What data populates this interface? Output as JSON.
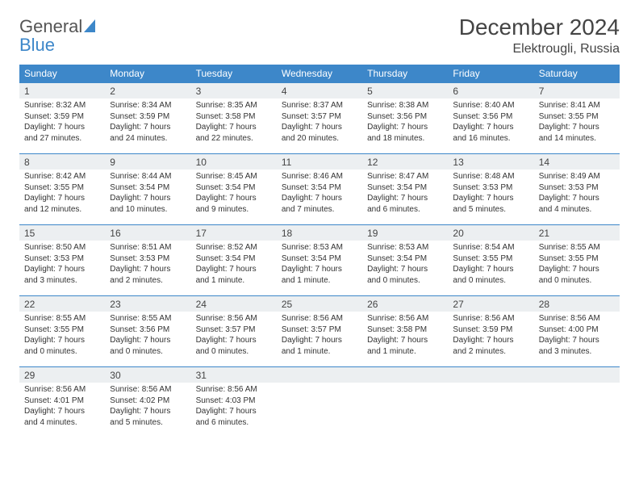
{
  "logo": {
    "text1": "General",
    "text2": "Blue"
  },
  "title": "December 2024",
  "location": "Elektrougli, Russia",
  "colors": {
    "header_blue": "#3d87c9",
    "daynum_bg": "#eceff1",
    "text": "#333333",
    "title_text": "#444444"
  },
  "weekdays": [
    "Sunday",
    "Monday",
    "Tuesday",
    "Wednesday",
    "Thursday",
    "Friday",
    "Saturday"
  ],
  "days": {
    "1": {
      "sunrise": "Sunrise: 8:32 AM",
      "sunset": "Sunset: 3:59 PM",
      "daylight": "Daylight: 7 hours and 27 minutes."
    },
    "2": {
      "sunrise": "Sunrise: 8:34 AM",
      "sunset": "Sunset: 3:59 PM",
      "daylight": "Daylight: 7 hours and 24 minutes."
    },
    "3": {
      "sunrise": "Sunrise: 8:35 AM",
      "sunset": "Sunset: 3:58 PM",
      "daylight": "Daylight: 7 hours and 22 minutes."
    },
    "4": {
      "sunrise": "Sunrise: 8:37 AM",
      "sunset": "Sunset: 3:57 PM",
      "daylight": "Daylight: 7 hours and 20 minutes."
    },
    "5": {
      "sunrise": "Sunrise: 8:38 AM",
      "sunset": "Sunset: 3:56 PM",
      "daylight": "Daylight: 7 hours and 18 minutes."
    },
    "6": {
      "sunrise": "Sunrise: 8:40 AM",
      "sunset": "Sunset: 3:56 PM",
      "daylight": "Daylight: 7 hours and 16 minutes."
    },
    "7": {
      "sunrise": "Sunrise: 8:41 AM",
      "sunset": "Sunset: 3:55 PM",
      "daylight": "Daylight: 7 hours and 14 minutes."
    },
    "8": {
      "sunrise": "Sunrise: 8:42 AM",
      "sunset": "Sunset: 3:55 PM",
      "daylight": "Daylight: 7 hours and 12 minutes."
    },
    "9": {
      "sunrise": "Sunrise: 8:44 AM",
      "sunset": "Sunset: 3:54 PM",
      "daylight": "Daylight: 7 hours and 10 minutes."
    },
    "10": {
      "sunrise": "Sunrise: 8:45 AM",
      "sunset": "Sunset: 3:54 PM",
      "daylight": "Daylight: 7 hours and 9 minutes."
    },
    "11": {
      "sunrise": "Sunrise: 8:46 AM",
      "sunset": "Sunset: 3:54 PM",
      "daylight": "Daylight: 7 hours and 7 minutes."
    },
    "12": {
      "sunrise": "Sunrise: 8:47 AM",
      "sunset": "Sunset: 3:54 PM",
      "daylight": "Daylight: 7 hours and 6 minutes."
    },
    "13": {
      "sunrise": "Sunrise: 8:48 AM",
      "sunset": "Sunset: 3:53 PM",
      "daylight": "Daylight: 7 hours and 5 minutes."
    },
    "14": {
      "sunrise": "Sunrise: 8:49 AM",
      "sunset": "Sunset: 3:53 PM",
      "daylight": "Daylight: 7 hours and 4 minutes."
    },
    "15": {
      "sunrise": "Sunrise: 8:50 AM",
      "sunset": "Sunset: 3:53 PM",
      "daylight": "Daylight: 7 hours and 3 minutes."
    },
    "16": {
      "sunrise": "Sunrise: 8:51 AM",
      "sunset": "Sunset: 3:53 PM",
      "daylight": "Daylight: 7 hours and 2 minutes."
    },
    "17": {
      "sunrise": "Sunrise: 8:52 AM",
      "sunset": "Sunset: 3:54 PM",
      "daylight": "Daylight: 7 hours and 1 minute."
    },
    "18": {
      "sunrise": "Sunrise: 8:53 AM",
      "sunset": "Sunset: 3:54 PM",
      "daylight": "Daylight: 7 hours and 1 minute."
    },
    "19": {
      "sunrise": "Sunrise: 8:53 AM",
      "sunset": "Sunset: 3:54 PM",
      "daylight": "Daylight: 7 hours and 0 minutes."
    },
    "20": {
      "sunrise": "Sunrise: 8:54 AM",
      "sunset": "Sunset: 3:55 PM",
      "daylight": "Daylight: 7 hours and 0 minutes."
    },
    "21": {
      "sunrise": "Sunrise: 8:55 AM",
      "sunset": "Sunset: 3:55 PM",
      "daylight": "Daylight: 7 hours and 0 minutes."
    },
    "22": {
      "sunrise": "Sunrise: 8:55 AM",
      "sunset": "Sunset: 3:55 PM",
      "daylight": "Daylight: 7 hours and 0 minutes."
    },
    "23": {
      "sunrise": "Sunrise: 8:55 AM",
      "sunset": "Sunset: 3:56 PM",
      "daylight": "Daylight: 7 hours and 0 minutes."
    },
    "24": {
      "sunrise": "Sunrise: 8:56 AM",
      "sunset": "Sunset: 3:57 PM",
      "daylight": "Daylight: 7 hours and 0 minutes."
    },
    "25": {
      "sunrise": "Sunrise: 8:56 AM",
      "sunset": "Sunset: 3:57 PM",
      "daylight": "Daylight: 7 hours and 1 minute."
    },
    "26": {
      "sunrise": "Sunrise: 8:56 AM",
      "sunset": "Sunset: 3:58 PM",
      "daylight": "Daylight: 7 hours and 1 minute."
    },
    "27": {
      "sunrise": "Sunrise: 8:56 AM",
      "sunset": "Sunset: 3:59 PM",
      "daylight": "Daylight: 7 hours and 2 minutes."
    },
    "28": {
      "sunrise": "Sunrise: 8:56 AM",
      "sunset": "Sunset: 4:00 PM",
      "daylight": "Daylight: 7 hours and 3 minutes."
    },
    "29": {
      "sunrise": "Sunrise: 8:56 AM",
      "sunset": "Sunset: 4:01 PM",
      "daylight": "Daylight: 7 hours and 4 minutes."
    },
    "30": {
      "sunrise": "Sunrise: 8:56 AM",
      "sunset": "Sunset: 4:02 PM",
      "daylight": "Daylight: 7 hours and 5 minutes."
    },
    "31": {
      "sunrise": "Sunrise: 8:56 AM",
      "sunset": "Sunset: 4:03 PM",
      "daylight": "Daylight: 7 hours and 6 minutes."
    }
  },
  "layout": {
    "first_weekday_index": 0,
    "num_days": 31,
    "weeks": 5
  }
}
